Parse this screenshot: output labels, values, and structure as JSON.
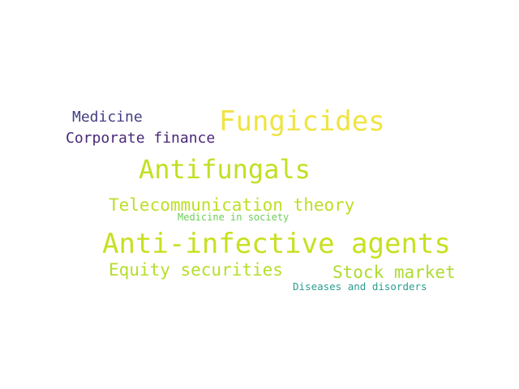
{
  "words": [
    {
      "id": "fungicides",
      "text": "Fungicides",
      "color": "#f0e442"
    },
    {
      "id": "medicine",
      "text": "Medicine",
      "color": "#433e85"
    },
    {
      "id": "corporate_finance",
      "text": "Corporate finance",
      "color": "#482878"
    },
    {
      "id": "antifungals",
      "text": "Antifungals",
      "color": "#c2df23"
    },
    {
      "id": "telecommunication_theory",
      "text": "Telecommunication theory",
      "color": "#bddf26"
    },
    {
      "id": "medicine_in_society",
      "text": "Medicine in society",
      "color": "#6ece58"
    },
    {
      "id": "anti_infective_agents",
      "text": "Anti-infective agents",
      "color": "#c8e020"
    },
    {
      "id": "equity_securities",
      "text": "Equity securities",
      "color": "#b5de2b"
    },
    {
      "id": "stock_market",
      "text": "Stock market",
      "color": "#addc30"
    },
    {
      "id": "diseases_and_disorders",
      "text": "Diseases and disorders",
      "color": "#2a9d8f"
    }
  ]
}
